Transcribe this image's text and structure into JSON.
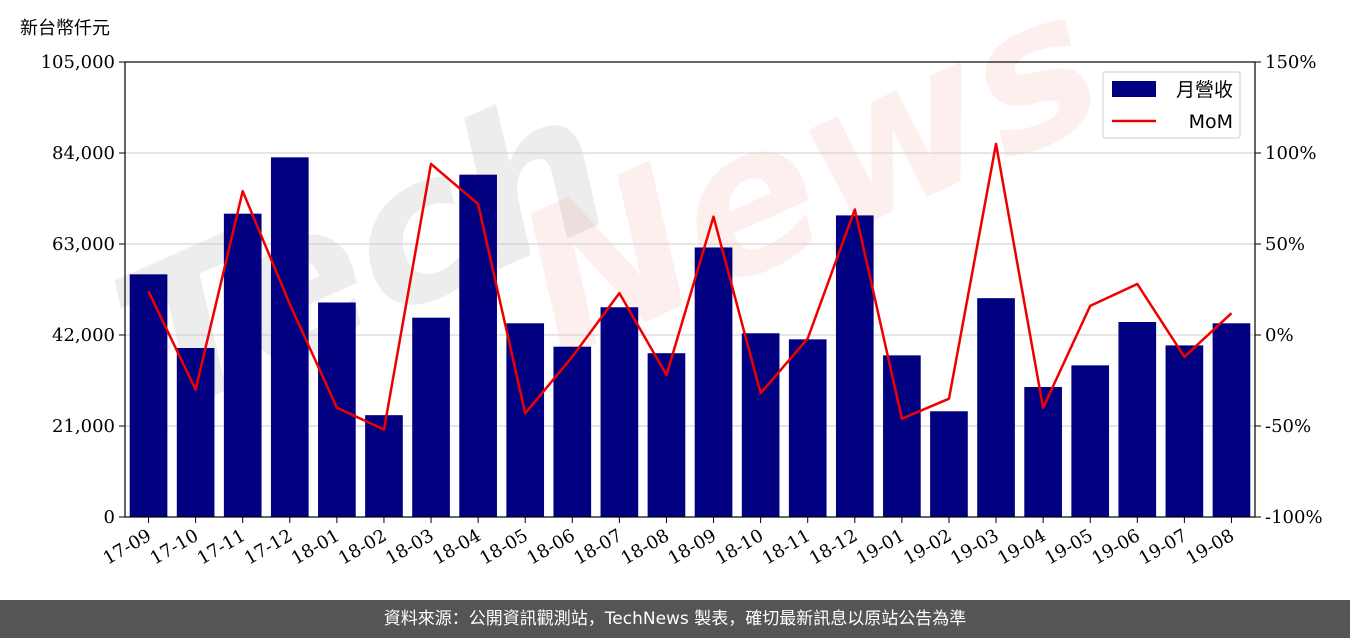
{
  "chart_data": {
    "type": "bar",
    "title": "",
    "ylabel": "新台幣仟元",
    "categories": [
      "17-09",
      "17-10",
      "17-11",
      "17-12",
      "18-01",
      "18-02",
      "18-03",
      "18-04",
      "18-05",
      "18-06",
      "18-07",
      "18-08",
      "18-09",
      "18-10",
      "18-11",
      "18-12",
      "19-01",
      "19-02",
      "19-03",
      "19-04",
      "19-05",
      "19-06",
      "19-07",
      "19-08"
    ],
    "series": [
      {
        "name": "月營收",
        "type": "bar",
        "axis": "left",
        "color": "#000080",
        "values": [
          56000,
          39000,
          70000,
          83000,
          49500,
          23500,
          46000,
          79000,
          44700,
          39300,
          48400,
          37800,
          62200,
          42400,
          41000,
          69600,
          37300,
          24400,
          50500,
          30000,
          35000,
          45000,
          39600,
          44700
        ]
      },
      {
        "name": "MoM",
        "type": "line",
        "axis": "right",
        "color": "#ee0000",
        "values": [
          24,
          -30,
          79,
          17,
          -40,
          -52,
          94,
          72,
          -43,
          -12,
          23,
          -22,
          65,
          -32,
          -2,
          69,
          -46,
          -35,
          105,
          -40,
          16,
          28,
          -12,
          12
        ]
      }
    ],
    "y_left": {
      "ylim": [
        0,
        105000
      ],
      "ticks": [
        0,
        21000,
        42000,
        63000,
        84000,
        105000
      ],
      "tick_labels": [
        "0",
        "21,000",
        "42,000",
        "63,000",
        "84,000",
        "105,000"
      ]
    },
    "y_right": {
      "ylim": [
        -100,
        150
      ],
      "ticks": [
        -100,
        -50,
        0,
        50,
        100,
        150
      ],
      "tick_labels": [
        "-100%",
        "-50%",
        "0%",
        "50%",
        "100%",
        "150%"
      ]
    },
    "grid": "horizontal",
    "legend_position": "top-right"
  },
  "watermark": "TechNews",
  "footer": {
    "source_text": "資料來源：公開資訊觀測站，TechNews 製表，確切最新訊息以原站公告為準"
  }
}
